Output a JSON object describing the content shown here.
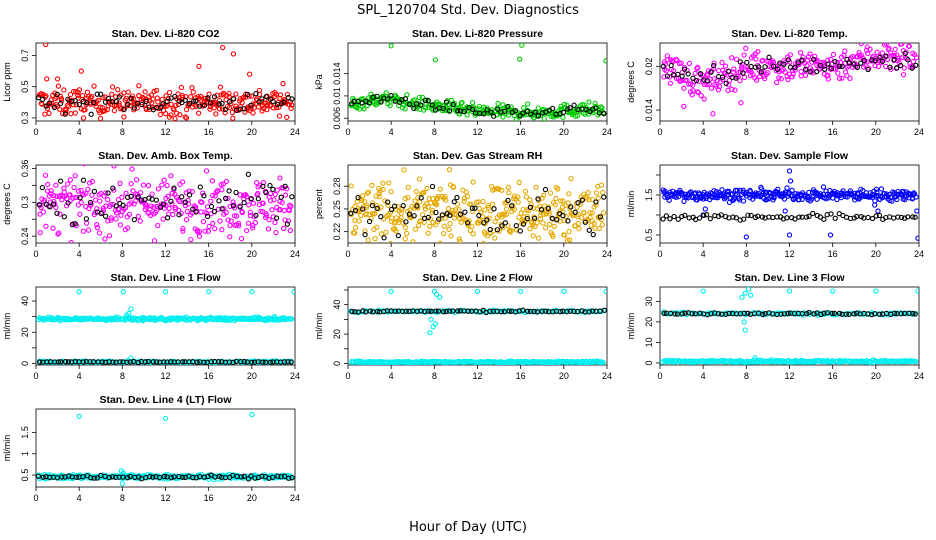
{
  "title": "SPL_120704  Std. Dev. Diagnostics",
  "xlabel": "Hour of Day (UTC)",
  "chart_data": [
    {
      "id": "co2",
      "type": "scatter",
      "title": "Stan. Dev. Li-820 CO2",
      "ylabel": "Licor ppm",
      "xlim": [
        0,
        24
      ],
      "xticks": [
        0,
        4,
        8,
        12,
        16,
        20,
        24
      ],
      "ylim": [
        0.28,
        0.78
      ],
      "yticks": [
        0.3,
        0.5,
        0.7
      ],
      "series": [
        {
          "color": "#ff0000",
          "base": 0.4,
          "noise": 0.045,
          "n": 300,
          "outliers": [
            [
              0.9,
              0.77
            ],
            [
              1.0,
              0.55
            ],
            [
              17.3,
              0.75
            ],
            [
              18.3,
              0.71
            ],
            [
              15.1,
              0.63
            ],
            [
              19.8,
              0.58
            ],
            [
              2.0,
              0.55
            ],
            [
              4.2,
              0.6
            ]
          ]
        },
        {
          "color": "#000000",
          "base": 0.4,
          "noise": 0.03,
          "n": 70
        }
      ]
    },
    {
      "id": "pressure",
      "type": "scatter",
      "title": "Stan. Dev. Li-820 Pressure",
      "ylabel": "kPa",
      "xlim": [
        0,
        24
      ],
      "xticks": [
        0,
        4,
        8,
        12,
        16,
        20,
        24
      ],
      "ylim": [
        0.0055,
        0.0195
      ],
      "yticks": [
        0.006,
        0.01,
        0.014
      ],
      "series": [
        {
          "color": "#00cc00",
          "base": 0.0085,
          "noise": 0.0006,
          "n": 300,
          "trend": [
            [
              0,
              0.0085
            ],
            [
              3,
              0.0095
            ],
            [
              8,
              0.0082
            ],
            [
              12,
              0.0072
            ],
            [
              18,
              0.007
            ],
            [
              22,
              0.0076
            ],
            [
              24,
              0.0074
            ]
          ],
          "outliers": [
            [
              4.0,
              0.019
            ],
            [
              8.1,
              0.0165
            ],
            [
              15.9,
              0.0166
            ],
            [
              16.1,
              0.0191
            ],
            [
              23.9,
              0.0163
            ]
          ]
        },
        {
          "color": "#000000",
          "base": 0.0085,
          "noise": 0.0004,
          "n": 70,
          "trend": [
            [
              0,
              0.0085
            ],
            [
              3,
              0.0095
            ],
            [
              8,
              0.0082
            ],
            [
              12,
              0.0072
            ],
            [
              18,
              0.007
            ],
            [
              22,
              0.0076
            ],
            [
              24,
              0.0074
            ]
          ]
        }
      ]
    },
    {
      "id": "temp",
      "type": "scatter",
      "title": "Stan. Dev. Li-820 Temp.",
      "ylabel": "degrees C",
      "xlim": [
        0,
        24
      ],
      "xticks": [
        0,
        4,
        8,
        12,
        16,
        20,
        24
      ],
      "ylim": [
        0.0125,
        0.0232
      ],
      "yticks": [
        0.014,
        0.02
      ],
      "series": [
        {
          "color": "#ff00ff",
          "base": 0.0203,
          "noise": 0.0011,
          "n": 300,
          "trend": [
            [
              0,
              0.0205
            ],
            [
              4,
              0.0175
            ],
            [
              8,
              0.02
            ],
            [
              12,
              0.02
            ],
            [
              16,
              0.02
            ],
            [
              20,
              0.0215
            ],
            [
              24,
              0.021
            ]
          ],
          "outliers": [
            [
              4.9,
              0.0135
            ],
            [
              2.2,
              0.0145
            ],
            [
              7.5,
              0.015
            ]
          ]
        },
        {
          "color": "#000000",
          "base": 0.0203,
          "noise": 0.0007,
          "n": 70,
          "trend": [
            [
              0,
              0.02
            ],
            [
              4,
              0.018
            ],
            [
              8,
              0.02
            ],
            [
              12,
              0.02
            ],
            [
              16,
              0.02
            ],
            [
              20,
              0.021
            ],
            [
              24,
              0.0208
            ]
          ]
        }
      ]
    },
    {
      "id": "box",
      "type": "scatter",
      "title": "Stan. Dev. Amb. Box Temp.",
      "ylabel": "degrees C",
      "xlim": [
        0,
        24
      ],
      "xticks": [
        0,
        4,
        8,
        12,
        16,
        20,
        24
      ],
      "ylim": [
        0.228,
        0.366
      ],
      "yticks": [
        0.24,
        0.27,
        0.3,
        0.33,
        0.36
      ],
      "ytickLabels": [
        0.24,
        0.3,
        0.36
      ],
      "series": [
        {
          "color": "#ff00ff",
          "base": 0.295,
          "noise": 0.025,
          "n": 320
        },
        {
          "color": "#000000",
          "base": 0.295,
          "noise": 0.022,
          "n": 70
        }
      ]
    },
    {
      "id": "rh",
      "type": "scatter",
      "title": "Stan. Dev. Gas Stream RH",
      "ylabel": "percent",
      "xlim": [
        0,
        24
      ],
      "xticks": [
        0,
        4,
        8,
        12,
        16,
        20,
        24
      ],
      "ylim": [
        0.205,
        0.308
      ],
      "yticks": [
        0.22,
        0.25,
        0.28
      ],
      "ytickLabels": [
        0.22,
        0.25,
        0.28
      ],
      "series": [
        {
          "color": "#e6a800",
          "base": 0.245,
          "noise": 0.02,
          "n": 380
        },
        {
          "color": "#000000",
          "base": 0.245,
          "noise": 0.015,
          "n": 70
        }
      ]
    },
    {
      "id": "sample",
      "type": "scatter",
      "title": "Stan. Dev. Sample Flow",
      "ylabel": "ml/min",
      "xlim": [
        0,
        24
      ],
      "xticks": [
        0,
        4,
        8,
        12,
        16,
        20,
        24
      ],
      "ylim": [
        0.3,
        2.25
      ],
      "yticks": [
        0.5,
        1.0,
        1.5,
        2.0
      ],
      "ytickLabels": [
        0.5,
        1.5
      ],
      "series": [
        {
          "color": "#0000ff",
          "base": 1.5,
          "noise": 0.07,
          "n": 320,
          "outliers": [
            [
              4.0,
              1.0
            ],
            [
              4.2,
              1.15
            ],
            [
              12.0,
              2.1
            ],
            [
              12.1,
              1.85
            ],
            [
              12.0,
              0.5
            ],
            [
              8.0,
              0.45
            ],
            [
              11.6,
              1.1
            ],
            [
              15.8,
              0.5
            ],
            [
              19.9,
              1.25
            ],
            [
              20.2,
              1.1
            ],
            [
              23.9,
              0.42
            ],
            [
              23.8,
              1.1
            ]
          ]
        },
        {
          "color": "#000000",
          "base": 0.95,
          "noise": 0.04,
          "n": 70
        }
      ]
    },
    {
      "id": "line1",
      "type": "scatter",
      "title": "Stan. Dev. Line 1 Flow",
      "ylabel": "ml/min",
      "xlim": [
        0,
        24
      ],
      "xticks": [
        0,
        4,
        8,
        12,
        16,
        20,
        24
      ],
      "ylim": [
        -1,
        49
      ],
      "yticks": [
        0,
        10,
        20,
        30,
        40
      ],
      "ytickLabels": [
        0,
        20,
        40
      ],
      "series": [
        {
          "color": "#00eeee",
          "base": 28.5,
          "noise": 0.5,
          "n": 300,
          "outliers": [
            [
              4.0,
              46
            ],
            [
              8.1,
              46
            ],
            [
              12.0,
              46
            ],
            [
              16.0,
              46
            ],
            [
              20.0,
              46
            ],
            [
              23.9,
              46
            ],
            [
              8.8,
              35
            ],
            [
              8.6,
              32
            ],
            [
              8.4,
              31
            ]
          ]
        },
        {
          "color": "#00eeee",
          "base": 1.0,
          "noise": 0.3,
          "n": 160,
          "outliers": [
            [
              8.8,
              3.5
            ]
          ]
        },
        {
          "color": "#000000",
          "base": 1.0,
          "noise": 0.15,
          "n": 70
        }
      ]
    },
    {
      "id": "line2",
      "type": "scatter",
      "title": "Stan. Dev. Line 2 Flow",
      "ylabel": "ml/min",
      "xlim": [
        0,
        24
      ],
      "xticks": [
        0,
        4,
        8,
        12,
        16,
        20,
        24
      ],
      "ylim": [
        -1,
        52
      ],
      "yticks": [
        0,
        10,
        20,
        30,
        40,
        50
      ],
      "ytickLabels": [
        0,
        20,
        40
      ],
      "series": [
        {
          "color": "#00eeee",
          "base": 1.0,
          "noise": 0.3,
          "n": 260,
          "outliers": [
            [
              4.0,
              49
            ],
            [
              8.0,
              49
            ],
            [
              12.0,
              49
            ],
            [
              16.0,
              49
            ],
            [
              20.0,
              49
            ],
            [
              23.9,
              49
            ],
            [
              7.6,
              21
            ],
            [
              7.9,
              25
            ],
            [
              8.1,
              27
            ],
            [
              7.7,
              30
            ],
            [
              8.2,
              47
            ],
            [
              8.5,
              45
            ]
          ]
        },
        {
          "color": "#00eeee",
          "base": 35.5,
          "noise": 0.4,
          "n": 120
        },
        {
          "color": "#000000",
          "base": 35.5,
          "noise": 0.3,
          "n": 70
        }
      ]
    },
    {
      "id": "line3",
      "type": "scatter",
      "title": "Stan. Dev. Line 3 Flow",
      "ylabel": "ml/min",
      "xlim": [
        0,
        24
      ],
      "xticks": [
        0,
        4,
        8,
        12,
        16,
        20,
        24
      ],
      "ylim": [
        -1,
        37
      ],
      "yticks": [
        0,
        10,
        20,
        30
      ],
      "ytickLabels": [
        0,
        10,
        20,
        30
      ],
      "series": [
        {
          "color": "#00eeee",
          "base": 0.8,
          "noise": 0.25,
          "n": 260,
          "outliers": [
            [
              4.0,
              35
            ],
            [
              7.6,
              32
            ],
            [
              7.9,
              34
            ],
            [
              8.2,
              36
            ],
            [
              8.4,
              33
            ],
            [
              12.0,
              35
            ],
            [
              16.0,
              35
            ],
            [
              20.0,
              35
            ],
            [
              23.9,
              35
            ],
            [
              7.8,
              20
            ],
            [
              7.9,
              16
            ],
            [
              8.8,
              2.5
            ]
          ]
        },
        {
          "color": "#00eeee",
          "base": 24.0,
          "noise": 0.3,
          "n": 120
        },
        {
          "color": "#000000",
          "base": 24.0,
          "noise": 0.25,
          "n": 70
        }
      ]
    },
    {
      "id": "line4",
      "type": "scatter",
      "title": "Stan. Dev. Line 4 (LT) Flow",
      "ylabel": "ml/min",
      "xlim": [
        0,
        24
      ],
      "xticks": [
        0,
        4,
        8,
        12,
        16,
        20,
        24
      ],
      "ylim": [
        0.22,
        2.05
      ],
      "yticks": [
        0.5,
        1.0,
        1.5
      ],
      "ytickLabels": [
        0.5,
        1.0,
        1.5
      ],
      "series": [
        {
          "color": "#00eeee",
          "base": 0.46,
          "noise": 0.025,
          "n": 300,
          "outliers": [
            [
              4.0,
              1.88
            ],
            [
              12.0,
              1.83
            ],
            [
              20.0,
              1.92
            ],
            [
              8.0,
              0.3
            ],
            [
              8.1,
              0.55
            ],
            [
              7.9,
              0.6
            ]
          ]
        },
        {
          "color": "#000000",
          "base": 0.46,
          "noise": 0.02,
          "n": 70
        }
      ]
    }
  ]
}
